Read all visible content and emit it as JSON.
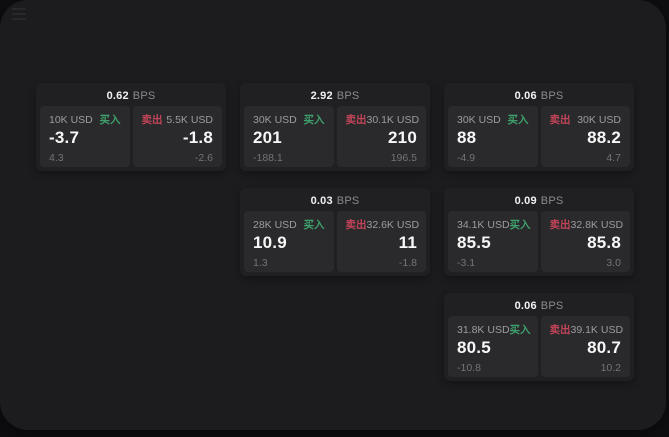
{
  "labels": {
    "buy": "买入",
    "sell": "卖出",
    "bps": "BPS"
  },
  "colors": {
    "buy_green": "#3EA06C",
    "sell_red": "#C24458"
  },
  "cards": [
    {
      "row": 1,
      "col": 1,
      "bps": "0.62",
      "buy": {
        "amount": "10K USD",
        "value": "-3.7",
        "delta": "4.3"
      },
      "sell": {
        "amount": "5.5K USD",
        "value": "-1.8",
        "delta": "-2.6"
      }
    },
    {
      "row": 1,
      "col": 2,
      "bps": "2.92",
      "buy": {
        "amount": "30K USD",
        "value": "201",
        "delta": "-188.1"
      },
      "sell": {
        "amount": "30.1K USD",
        "value": "210",
        "delta": "196.5"
      }
    },
    {
      "row": 1,
      "col": 3,
      "bps": "0.06",
      "buy": {
        "amount": "30K USD",
        "value": "88",
        "delta": "-4.9"
      },
      "sell": {
        "amount": "30K USD",
        "value": "88.2",
        "delta": "4.7"
      }
    },
    {
      "row": 2,
      "col": 2,
      "bps": "0.03",
      "buy": {
        "amount": "28K USD",
        "value": "10.9",
        "delta": "1.3"
      },
      "sell": {
        "amount": "32.6K USD",
        "value": "11",
        "delta": "-1.8"
      }
    },
    {
      "row": 2,
      "col": 3,
      "bps": "0.09",
      "buy": {
        "amount": "34.1K USD",
        "value": "85.5",
        "delta": "-3.1"
      },
      "sell": {
        "amount": "32.8K USD",
        "value": "85.8",
        "delta": "3.0"
      }
    },
    {
      "row": 3,
      "col": 3,
      "bps": "0.06",
      "buy": {
        "amount": "31.8K USD",
        "value": "80.5",
        "delta": "-10.8"
      },
      "sell": {
        "amount": "39.1K USD",
        "value": "80.7",
        "delta": "10.2"
      }
    }
  ]
}
